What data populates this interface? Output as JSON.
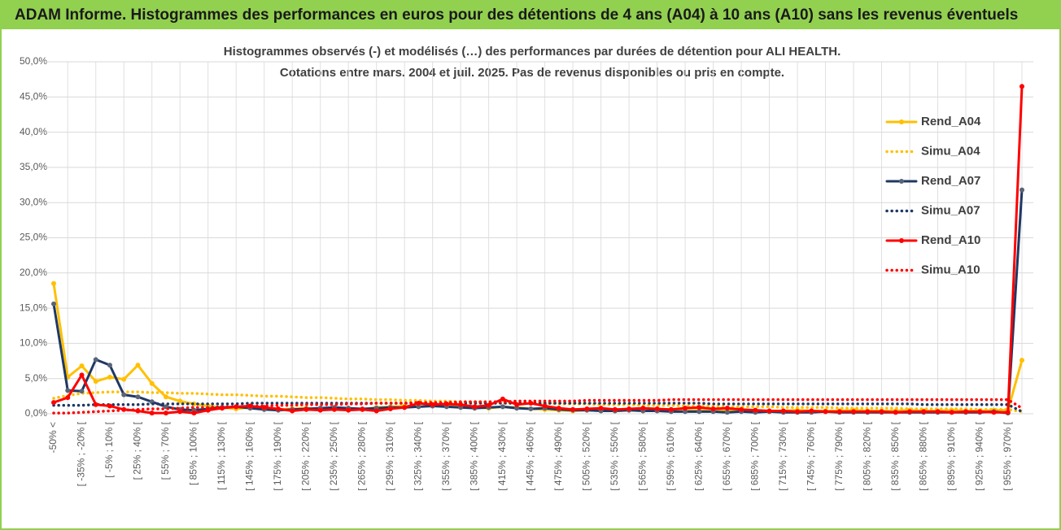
{
  "header": {
    "title": "ADAM Informe. Histogrammes des performances en euros pour des détentions de 4 ans (A04) à 10 ans (A10) sans les revenus éventuels"
  },
  "chart_data": {
    "type": "line",
    "title": "Histogrammes observés (-) et modélisés (…) des performances par durées de détention pour ALI HEALTH.",
    "subtitle": "Cotations entre mars. 2004 et juil. 2025. Pas de revenus disponibles ou pris en compte.",
    "categories": [
      "-50% <",
      null,
      "[ -35% ; -20% [",
      null,
      "[ -5% ; 10% [",
      null,
      "[ 25% ; 40% [",
      null,
      "[ 55% ; 70% [",
      null,
      "[ 85% ; 100% [",
      null,
      "[ 115% ; 130% [",
      null,
      "[ 145% ; 160% [",
      null,
      "[ 175% ; 190% [",
      null,
      "[ 205% ; 220% [",
      null,
      "[ 235% ; 250% [",
      null,
      "[ 265% ; 280% [",
      null,
      "[ 295% ; 310% [",
      null,
      "[ 325% ; 340% [",
      null,
      "[ 355% ; 370% [",
      null,
      "[ 385% ; 400% [",
      null,
      "[ 415% ; 430% [",
      null,
      "[ 445% ; 460% [",
      null,
      "[ 475% ; 490% [",
      null,
      "[ 505% ; 520% [",
      null,
      "[ 535% ; 550% [",
      null,
      "[ 565% ; 580% [",
      null,
      "[ 595% ; 610% [",
      null,
      "[ 625% ; 640% [",
      null,
      "[ 655% ; 670% [",
      null,
      "[ 685% ; 700% [",
      null,
      "[ 715% ; 730% [",
      null,
      "[ 745% ; 760% [",
      null,
      "[ 775% ; 790% [",
      null,
      "[ 805% ; 820% [",
      null,
      "[ 835% ; 850% [",
      null,
      "[ 865% ; 880% [",
      null,
      "[ 895% ; 910% [",
      null,
      "[ 925% ; 940% [",
      null,
      "[ 955% ; 970% [",
      null
    ],
    "series": [
      {
        "name": "Rend_A04",
        "color": "#FFC000",
        "line_style": "solid",
        "markers": true,
        "values": [
          18.5,
          5.2,
          6.8,
          4.6,
          5.2,
          4.9,
          6.9,
          4.3,
          2.4,
          1.8,
          1.4,
          1.1,
          0.9,
          0.7,
          0.9,
          0.8,
          0.6,
          0.7,
          0.8,
          0.6,
          0.7,
          0.8,
          0.6,
          0.9,
          1.0,
          1.1,
          1.0,
          1.2,
          1.1,
          1.0,
          0.9,
          0.8,
          1.0,
          0.9,
          0.7,
          0.6,
          0.5,
          0.4,
          0.5,
          0.4,
          0.4,
          0.5,
          0.4,
          0.5,
          0.4,
          0.4,
          0.5,
          0.4,
          0.4,
          0.5,
          0.4,
          0.4,
          0.4,
          0.5,
          0.4,
          0.4,
          0.4,
          0.5,
          0.4,
          0.4,
          0.4,
          0.5,
          0.4,
          0.4,
          0.5,
          0.4,
          0.4,
          0.5,
          0.5,
          7.6
        ]
      },
      {
        "name": "Simu_A04",
        "color": "#FFC000",
        "line_style": "dotted",
        "markers": false,
        "values": [
          2.2,
          2.6,
          2.9,
          3.0,
          3.1,
          3.1,
          3.1,
          3.0,
          3.0,
          2.9,
          2.9,
          2.8,
          2.7,
          2.7,
          2.6,
          2.5,
          2.5,
          2.4,
          2.3,
          2.3,
          2.2,
          2.1,
          2.1,
          2.0,
          2.0,
          1.9,
          1.9,
          1.8,
          1.8,
          1.7,
          1.7,
          1.6,
          1.6,
          1.5,
          1.5,
          1.5,
          1.4,
          1.4,
          1.4,
          1.3,
          1.3,
          1.3,
          1.2,
          1.2,
          1.2,
          1.1,
          1.1,
          1.1,
          1.0,
          1.0,
          1.0,
          1.0,
          0.9,
          0.9,
          0.9,
          0.9,
          0.8,
          0.8,
          0.8,
          0.8,
          0.8,
          0.7,
          0.7,
          0.7,
          0.7,
          0.7,
          0.6,
          0.6,
          0.6,
          0.3
        ]
      },
      {
        "name": "Rend_A07",
        "color": "#1F3864",
        "line_style": "solid",
        "markers": true,
        "values": [
          15.6,
          3.3,
          3.2,
          7.7,
          6.9,
          2.7,
          2.4,
          1.7,
          1.0,
          0.6,
          0.5,
          0.7,
          0.9,
          1.0,
          0.8,
          0.6,
          0.5,
          0.6,
          0.7,
          0.8,
          0.9,
          0.8,
          0.7,
          0.8,
          0.9,
          0.9,
          1.0,
          1.1,
          1.0,
          0.9,
          0.8,
          0.9,
          1.0,
          0.8,
          0.7,
          0.8,
          0.6,
          0.5,
          0.5,
          0.4,
          0.4,
          0.5,
          0.4,
          0.4,
          0.3,
          0.3,
          0.3,
          0.3,
          0.2,
          0.3,
          0.2,
          0.3,
          0.2,
          0.2,
          0.2,
          0.3,
          0.2,
          0.2,
          0.2,
          0.2,
          0.2,
          0.2,
          0.2,
          0.2,
          0.2,
          0.2,
          0.2,
          0.3,
          0.1,
          31.8
        ]
      },
      {
        "name": "Simu_A07",
        "color": "#1F3864",
        "line_style": "dotted",
        "markers": false,
        "values": [
          1.2,
          1.2,
          1.2,
          1.3,
          1.3,
          1.3,
          1.3,
          1.4,
          1.4,
          1.4,
          1.4,
          1.4,
          1.4,
          1.4,
          1.5,
          1.5,
          1.5,
          1.5,
          1.5,
          1.5,
          1.5,
          1.5,
          1.5,
          1.5,
          1.5,
          1.5,
          1.5,
          1.5,
          1.5,
          1.5,
          1.5,
          1.5,
          1.5,
          1.5,
          1.5,
          1.5,
          1.5,
          1.5,
          1.5,
          1.5,
          1.5,
          1.5,
          1.5,
          1.5,
          1.5,
          1.5,
          1.5,
          1.4,
          1.4,
          1.4,
          1.4,
          1.4,
          1.4,
          1.4,
          1.4,
          1.4,
          1.4,
          1.4,
          1.4,
          1.4,
          1.4,
          1.4,
          1.3,
          1.3,
          1.3,
          1.3,
          1.3,
          1.3,
          1.3,
          0.3
        ]
      },
      {
        "name": "Rend_A10",
        "color": "#FF0000",
        "line_style": "solid",
        "markers": true,
        "values": [
          1.6,
          2.3,
          5.5,
          1.3,
          1.1,
          0.6,
          0.4,
          0.1,
          0.1,
          0.3,
          0.1,
          0.5,
          0.8,
          1.0,
          1.1,
          0.9,
          0.7,
          0.4,
          0.6,
          0.5,
          0.6,
          0.5,
          0.6,
          0.4,
          0.7,
          0.9,
          1.5,
          1.3,
          1.4,
          1.3,
          1.0,
          1.2,
          2.1,
          1.3,
          1.5,
          1.1,
          0.8,
          0.6,
          0.7,
          0.8,
          0.6,
          0.7,
          0.8,
          0.7,
          0.6,
          0.8,
          0.9,
          0.7,
          0.8,
          0.6,
          0.5,
          0.4,
          0.4,
          0.3,
          0.4,
          0.3,
          0.3,
          0.3,
          0.3,
          0.3,
          0.2,
          0.3,
          0.3,
          0.3,
          0.2,
          0.3,
          0.3,
          0.2,
          0.2,
          46.5
        ]
      },
      {
        "name": "Simu_A10",
        "color": "#FF0000",
        "line_style": "dotted",
        "markers": false,
        "values": [
          0.1,
          0.1,
          0.2,
          0.3,
          0.4,
          0.5,
          0.6,
          0.7,
          0.7,
          0.8,
          0.9,
          0.9,
          1.0,
          1.0,
          1.1,
          1.1,
          1.2,
          1.2,
          1.3,
          1.3,
          1.3,
          1.4,
          1.4,
          1.5,
          1.5,
          1.5,
          1.6,
          1.6,
          1.6,
          1.7,
          1.7,
          1.7,
          1.7,
          1.8,
          1.8,
          1.8,
          1.8,
          1.8,
          1.9,
          1.9,
          1.9,
          1.9,
          1.9,
          1.9,
          2.0,
          2.0,
          2.0,
          2.0,
          2.0,
          2.0,
          2.0,
          2.0,
          2.0,
          2.0,
          2.0,
          2.0,
          2.0,
          2.0,
          2.0,
          2.0,
          2.0,
          2.0,
          2.0,
          2.0,
          2.0,
          2.0,
          2.0,
          2.0,
          2.0,
          0.8
        ]
      }
    ],
    "ylim": [
      0,
      50
    ],
    "yticks": [
      {
        "value": 0,
        "label": "0,0%"
      },
      {
        "value": 5,
        "label": "5,0%"
      },
      {
        "value": 10,
        "label": "10,0%"
      },
      {
        "value": 15,
        "label": "15,0%"
      },
      {
        "value": 20,
        "label": "20,0%"
      },
      {
        "value": 25,
        "label": "25,0%"
      },
      {
        "value": 30,
        "label": "30,0%"
      },
      {
        "value": 35,
        "label": "35,0%"
      },
      {
        "value": 40,
        "label": "40,0%"
      },
      {
        "value": 45,
        "label": "45,0%"
      },
      {
        "value": 50,
        "label": "50,0%"
      }
    ],
    "grid": true,
    "legend": "right"
  }
}
